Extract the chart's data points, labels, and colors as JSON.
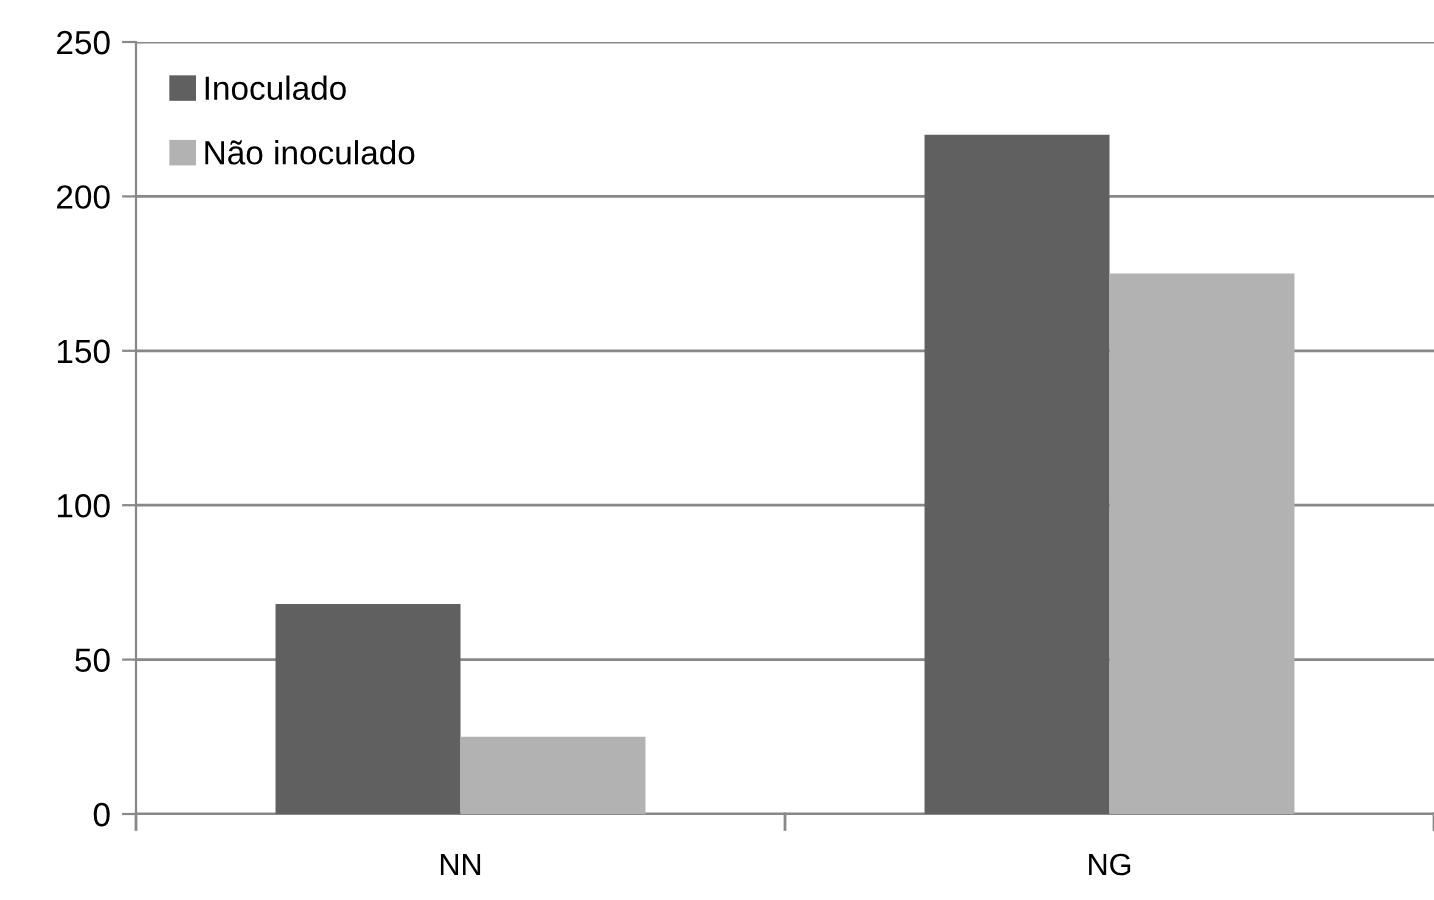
{
  "chart_data": {
    "type": "bar",
    "categories": [
      "NN",
      "NG"
    ],
    "series": [
      {
        "name": "Inoculado",
        "color": "#606060",
        "values": [
          68,
          220
        ]
      },
      {
        "name": "Não inoculado",
        "color": "#b2b2b2",
        "values": [
          25,
          175
        ]
      }
    ],
    "ylim": [
      0,
      250
    ],
    "yticks": [
      0,
      50,
      100,
      150,
      200,
      250
    ],
    "grid": "y",
    "legend": "top left"
  }
}
